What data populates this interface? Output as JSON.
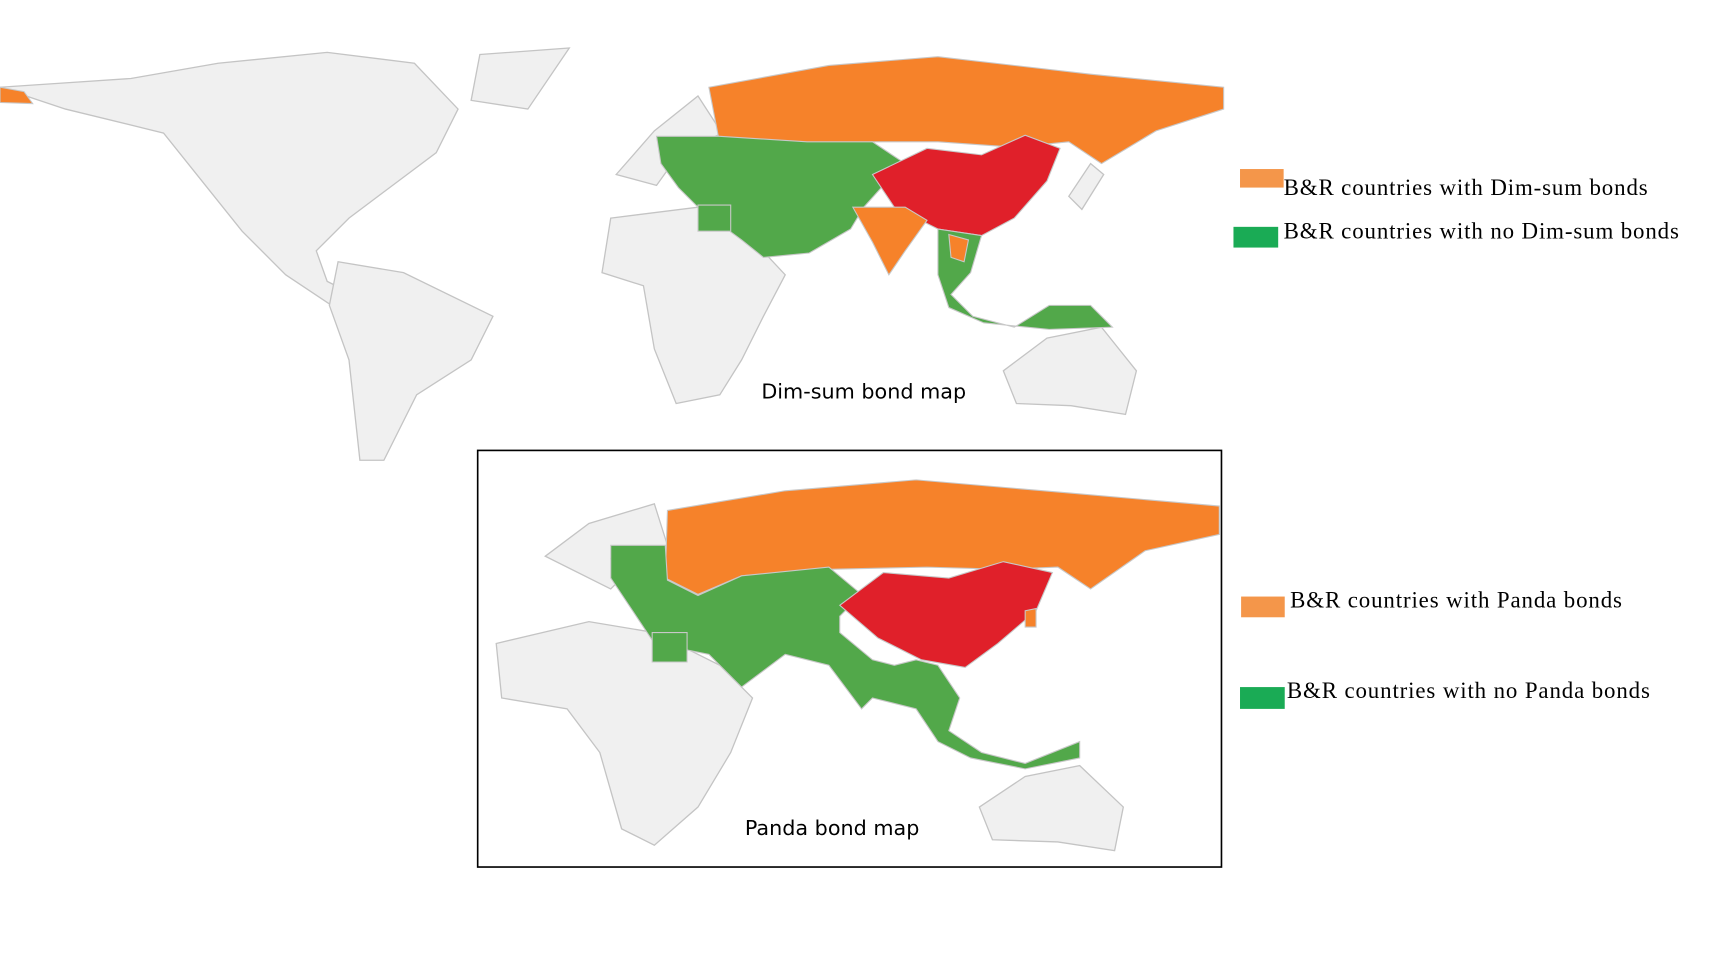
{
  "maps": [
    {
      "title": "Dim-sum bond map",
      "legend": [
        {
          "label": "B&R countries with Dim-sum bonds",
          "color": "#f4964a"
        },
        {
          "label": "B&R countries with no Dim-sum bonds",
          "color": "#1aab55"
        }
      ]
    },
    {
      "title": "Panda bond map",
      "legend": [
        {
          "label": "B&R countries with Panda bonds",
          "color": "#f4964a"
        },
        {
          "label": "B&R countries with no Panda bonds",
          "color": "#1aab55"
        }
      ]
    }
  ]
}
